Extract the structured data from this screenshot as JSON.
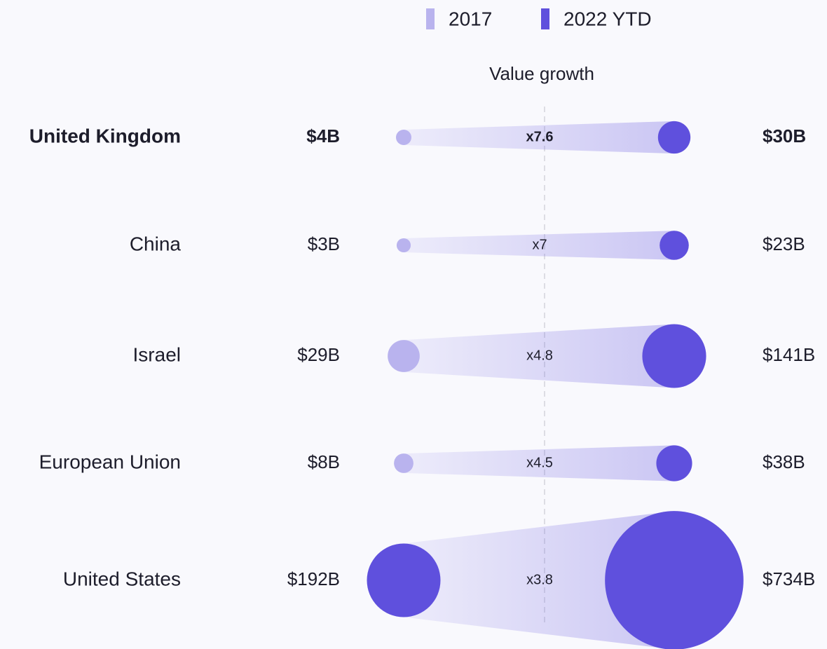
{
  "chart_data": {
    "type": "dumbbell",
    "column_header": "Value growth",
    "categories": [
      "United Kingdom",
      "China",
      "Israel",
      "European Union",
      "United States"
    ],
    "highlight": 0,
    "series": [
      {
        "name": "2017",
        "color": "#b9b3ee",
        "colors": [
          "#b9b3ee",
          "#b9b3ee",
          "#b9b3ee",
          "#b9b3ee",
          "#5f50dd"
        ],
        "values": [
          4,
          3,
          29,
          8,
          192
        ],
        "value_labels": [
          "$4B",
          "$3B",
          "$29B",
          "$8B",
          "$192B"
        ]
      },
      {
        "name": "2022 YTD",
        "color": "#5f50dd",
        "colors": [
          "#5f50dd",
          "#5f50dd",
          "#5f50dd",
          "#5f50dd",
          "#5f50dd"
        ],
        "values": [
          30,
          23,
          141,
          38,
          734
        ],
        "value_labels": [
          "$30B",
          "$23B",
          "$141B",
          "$38B",
          "$734B"
        ]
      }
    ],
    "growth": {
      "values": [
        7.6,
        7,
        4.8,
        4.5,
        3.8
      ],
      "value_labels": [
        "x7.6",
        "x7",
        "x4.8",
        "x4.5",
        "x3.8"
      ]
    }
  }
}
